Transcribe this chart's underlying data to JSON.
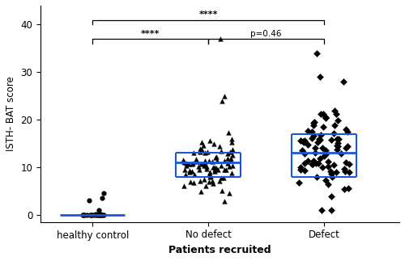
{
  "groups": [
    "healthy control",
    "No defect",
    "Defect"
  ],
  "xlabel": "Patients recruited",
  "ylabel": "ISTH- BAT score",
  "ylim": [
    -1.5,
    40
  ],
  "yticks": [
    0,
    10,
    20,
    30,
    40
  ],
  "marker_healthy": "o",
  "marker_nodefect": "^",
  "marker_defect": "D",
  "marker_size": 18,
  "bar_color": "#1a56db",
  "healthy_median": 0,
  "healthy_q1": 0,
  "healthy_q3": 0,
  "nodefect_median": 11,
  "nodefect_q1": 8,
  "nodefect_q3": 13,
  "defect_median": 13,
  "defect_q1": 8,
  "defect_q3": 17,
  "n_healthy": 22,
  "n_nodefect": 89,
  "n_defect": 82,
  "sig1_text": "****",
  "sig2_text": "****",
  "sig3_text": "p=0.46",
  "group_positions": [
    1,
    2,
    3
  ]
}
